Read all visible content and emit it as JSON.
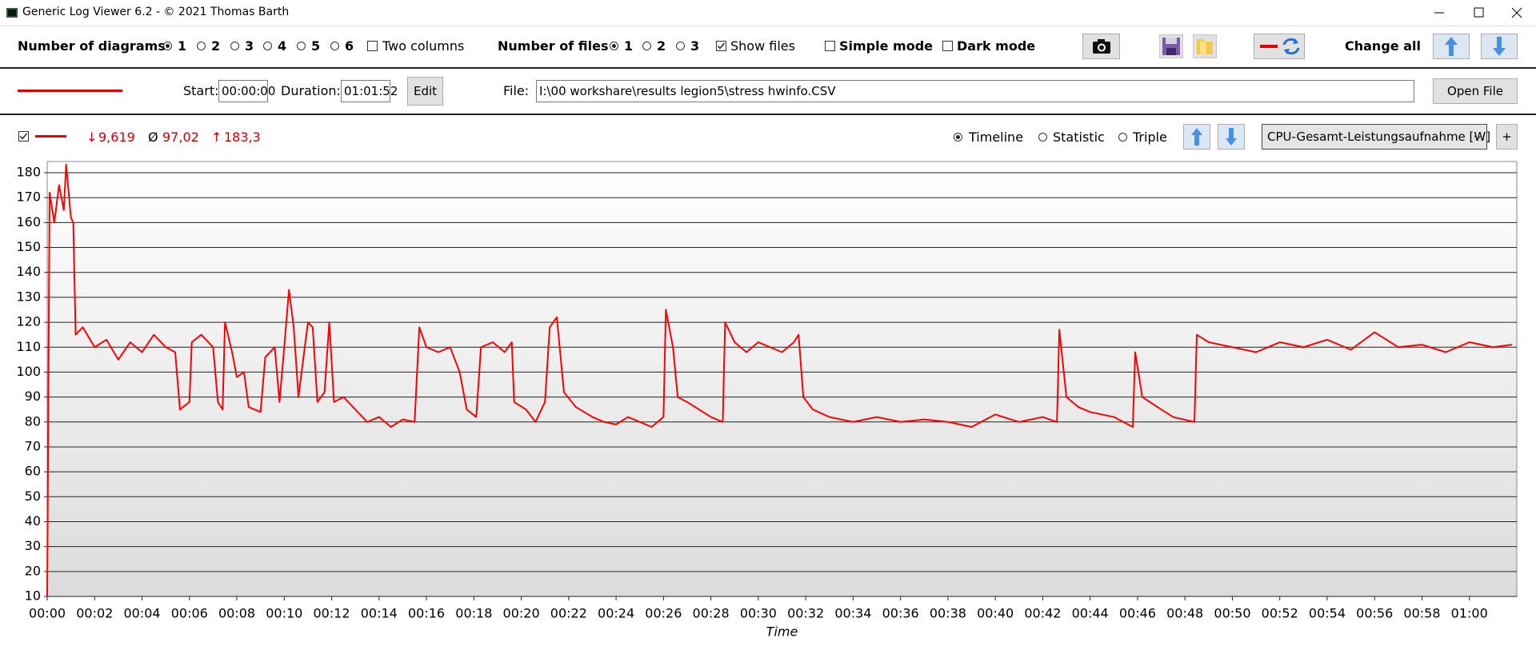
{
  "window": {
    "title": "Generic Log Viewer 6.2 - © 2021 Thomas Barth"
  },
  "toolbar": {
    "diagrams_label": "Number of diagrams",
    "diagram_options": [
      "1",
      "2",
      "3",
      "4",
      "5",
      "6"
    ],
    "two_columns": "Two columns",
    "files_label": "Number of files",
    "file_options": [
      "1",
      "2",
      "3"
    ],
    "show_files": "Show files",
    "simple_mode": "Simple mode",
    "dark_mode": "Dark mode",
    "change_all": "Change all"
  },
  "file_bar": {
    "start_label": "Start:",
    "start": "00:00:00",
    "duration_label": "Duration:",
    "duration": "01:01:52",
    "edit": "Edit",
    "file_label": "File:",
    "file_path": "I:\\00 workshare\\results legion5\\stress hwinfo.CSV",
    "open_file": "Open File"
  },
  "chart_header": {
    "stats": [
      {
        "symbol": "↓",
        "value": "9,619"
      },
      {
        "symbol": "Ø",
        "value": "97,02"
      },
      {
        "symbol": "↑",
        "value": "183,3"
      }
    ],
    "modes": [
      "Timeline",
      "Statistic",
      "Triple"
    ],
    "add": "+"
  },
  "chart_data": {
    "type": "line",
    "x_label": "Time",
    "x": [
      0,
      0.1,
      0.3,
      0.5,
      0.7,
      0.8,
      1.0,
      1.1,
      1.2,
      1.5,
      2.0,
      2.5,
      3.0,
      3.5,
      4.0,
      4.5,
      5.0,
      5.4,
      5.6,
      6.0,
      6.1,
      6.5,
      7.0,
      7.2,
      7.4,
      7.5,
      7.8,
      8.0,
      8.3,
      8.5,
      9.0,
      9.2,
      9.6,
      9.8,
      10.0,
      10.2,
      10.4,
      10.6,
      11.0,
      11.2,
      11.4,
      11.7,
      11.9,
      12.1,
      12.5,
      13.0,
      13.5,
      14.0,
      14.5,
      15.0,
      15.5,
      15.7,
      16.0,
      16.5,
      17.0,
      17.4,
      17.7,
      18.1,
      18.3,
      18.8,
      19.3,
      19.6,
      19.7,
      20.2,
      20.6,
      21.0,
      21.2,
      21.5,
      21.8,
      22.3,
      23.0,
      23.5,
      24.0,
      24.5,
      25.0,
      25.5,
      26.0,
      26.1,
      26.4,
      26.6,
      27.0,
      27.5,
      28.0,
      28.5,
      28.6,
      29.0,
      29.5,
      30.0,
      30.5,
      31.0,
      31.5,
      31.7,
      31.9,
      32.3,
      33.0,
      34.0,
      35.0,
      36.0,
      37.0,
      38.0,
      39.0,
      40.0,
      41.0,
      42.0,
      42.6,
      42.7,
      43.0,
      43.5,
      44.0,
      45.0,
      45.8,
      45.9,
      46.2,
      47.0,
      47.5,
      48.4,
      48.5,
      49.0,
      50.0,
      51.0,
      52.0,
      53.0,
      54.0,
      55.0,
      56.0,
      57.0,
      58.0,
      59.0,
      60.0,
      61.0,
      61.8
    ],
    "series": [
      {
        "name": "CPU-Gesamt-Leistungsaufnahme [W]",
        "color": "#ff0000",
        "values": [
          10,
          172,
          160,
          175,
          165,
          183.3,
          162,
          160,
          115,
          118,
          110,
          113,
          105,
          112,
          108,
          115,
          110,
          108,
          85,
          88,
          112,
          115,
          110,
          88,
          85,
          120,
          108,
          98,
          100,
          86,
          84,
          106,
          110,
          88,
          110,
          133,
          118,
          90,
          120,
          118,
          88,
          92,
          120,
          88,
          90,
          85,
          80,
          82,
          78,
          81,
          80,
          118,
          110,
          108,
          110,
          100,
          85,
          82,
          110,
          112,
          108,
          112,
          88,
          85,
          80,
          88,
          118,
          122,
          92,
          86,
          82,
          80,
          79,
          82,
          80,
          78,
          82,
          125,
          110,
          90,
          88,
          85,
          82,
          80,
          120,
          112,
          108,
          112,
          110,
          108,
          112,
          115,
          90,
          85,
          82,
          80,
          82,
          80,
          81,
          80,
          78,
          83,
          80,
          82,
          80,
          117,
          90,
          86,
          84,
          82,
          78,
          108,
          90,
          85,
          82,
          80,
          115,
          112,
          110,
          108,
          112,
          110,
          113,
          109,
          116,
          110,
          111,
          108,
          112,
          110,
          111
        ]
      }
    ],
    "xlim": [
      0,
      62
    ],
    "ylim": [
      10,
      184.5
    ],
    "xticks": [
      {
        "value": 0,
        "label": "00:00"
      },
      {
        "value": 2,
        "label": "00:02"
      },
      {
        "value": 4,
        "label": "00:04"
      },
      {
        "value": 6,
        "label": "00:06"
      },
      {
        "value": 8,
        "label": "00:08"
      },
      {
        "value": 10,
        "label": "00:10"
      },
      {
        "value": 12,
        "label": "00:12"
      },
      {
        "value": 14,
        "label": "00:14"
      },
      {
        "value": 16,
        "label": "00:16"
      },
      {
        "value": 18,
        "label": "00:18"
      },
      {
        "value": 20,
        "label": "00:20"
      },
      {
        "value": 22,
        "label": "00:22"
      },
      {
        "value": 24,
        "label": "00:24"
      },
      {
        "value": 26,
        "label": "00:26"
      },
      {
        "value": 28,
        "label": "00:28"
      },
      {
        "value": 30,
        "label": "00:30"
      },
      {
        "value": 32,
        "label": "00:32"
      },
      {
        "value": 34,
        "label": "00:34"
      },
      {
        "value": 36,
        "label": "00:36"
      },
      {
        "value": 38,
        "label": "00:38"
      },
      {
        "value": 40,
        "label": "00:40"
      },
      {
        "value": 42,
        "label": "00:42"
      },
      {
        "value": 44,
        "label": "00:44"
      },
      {
        "value": 46,
        "label": "00:46"
      },
      {
        "value": 48,
        "label": "00:48"
      },
      {
        "value": 50,
        "label": "00:50"
      },
      {
        "value": 52,
        "label": "00:52"
      },
      {
        "value": 54,
        "label": "00:54"
      },
      {
        "value": 56,
        "label": "00:56"
      },
      {
        "value": 58,
        "label": "00:58"
      },
      {
        "value": 60,
        "label": "01:00"
      }
    ],
    "yticks": [
      10,
      20,
      30,
      40,
      50,
      60,
      70,
      80,
      90,
      100,
      110,
      120,
      130,
      140,
      150,
      160,
      170,
      180
    ],
    "grid": true
  }
}
